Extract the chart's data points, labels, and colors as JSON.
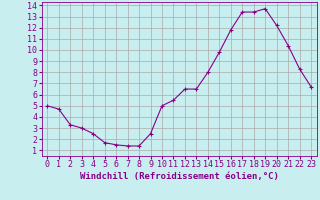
{
  "x": [
    0,
    1,
    2,
    3,
    4,
    5,
    6,
    7,
    8,
    9,
    10,
    11,
    12,
    13,
    14,
    15,
    16,
    17,
    18,
    19,
    20,
    21,
    22,
    23
  ],
  "y": [
    5.0,
    4.7,
    3.3,
    3.0,
    2.5,
    1.7,
    1.5,
    1.4,
    1.4,
    2.5,
    5.0,
    5.5,
    6.5,
    6.5,
    8.0,
    9.8,
    11.8,
    13.4,
    13.4,
    13.7,
    12.2,
    10.4,
    8.3,
    6.7
  ],
  "line_color": "#880088",
  "marker": "+",
  "bg_color": "#c8eef0",
  "grid_color": "#aaaaaa",
  "xlabel": "Windchill (Refroidissement éolien,°C)",
  "xlim_min": -0.5,
  "xlim_max": 23.5,
  "ylim_min": 0.5,
  "ylim_max": 14.3,
  "yticks": [
    1,
    2,
    3,
    4,
    5,
    6,
    7,
    8,
    9,
    10,
    11,
    12,
    13,
    14
  ],
  "xticks": [
    0,
    1,
    2,
    3,
    4,
    5,
    6,
    7,
    8,
    9,
    10,
    11,
    12,
    13,
    14,
    15,
    16,
    17,
    18,
    19,
    20,
    21,
    22,
    23
  ],
  "label_color": "#880088",
  "font_size_xlabel": 6.5,
  "font_size_ticks": 6.0,
  "linewidth": 0.8,
  "markersize": 3.5,
  "markeredgewidth": 0.8
}
